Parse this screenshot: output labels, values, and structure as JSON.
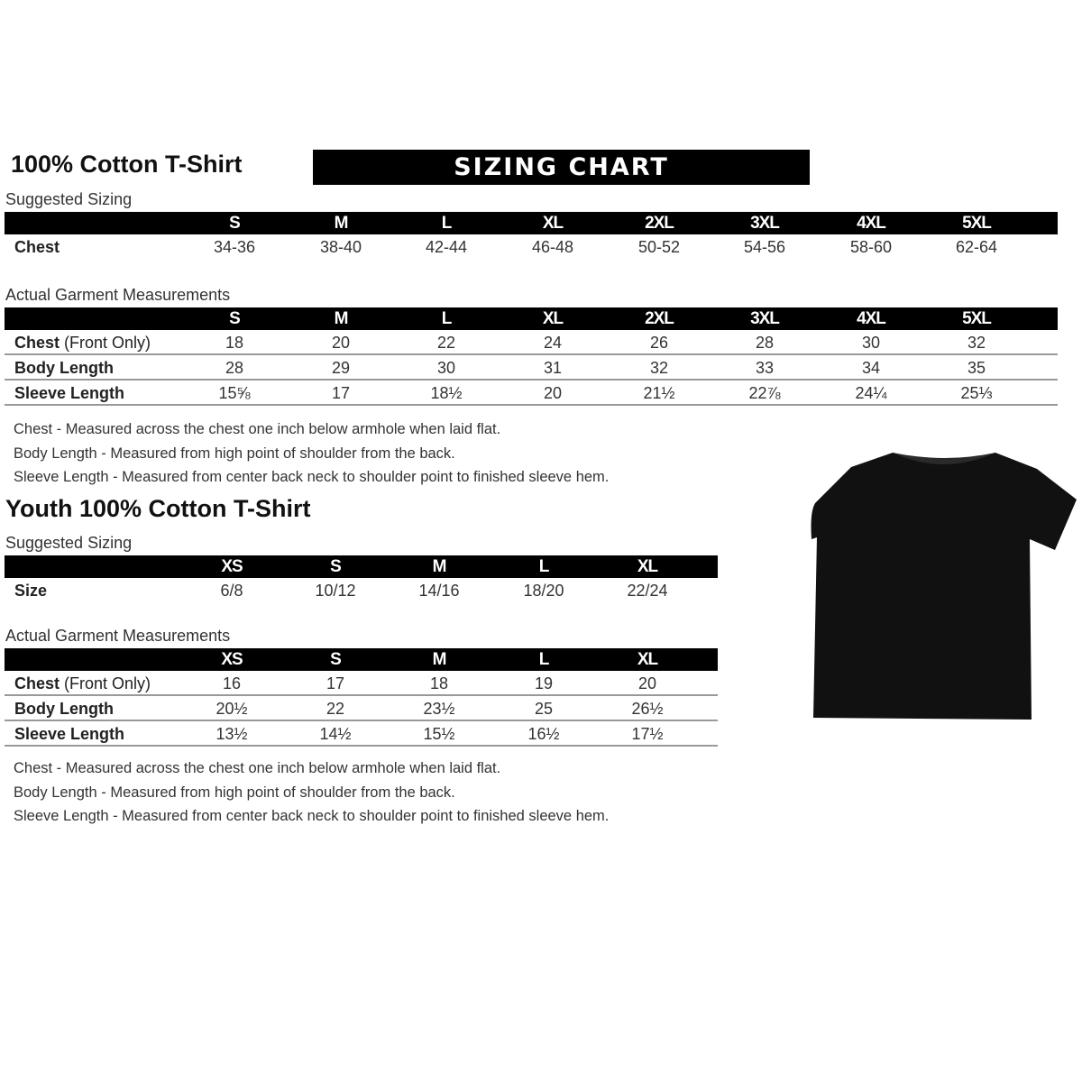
{
  "adult": {
    "title": "100% Cotton T-Shirt",
    "banner": "SIZING CHART",
    "suggested_label": "Suggested Sizing",
    "sizes": [
      "S",
      "M",
      "L",
      "XL",
      "2XL",
      "3XL",
      "4XL",
      "5XL"
    ],
    "suggested_rows": [
      {
        "label": "Chest",
        "values": [
          "34-36",
          "38-40",
          "42-44",
          "46-48",
          "50-52",
          "54-56",
          "58-60",
          "62-64"
        ]
      }
    ],
    "actual_label": "Actual Garment Measurements",
    "actual_rows": [
      {
        "label": "Chest",
        "label_extra": " (Front Only)",
        "values": [
          "18",
          "20",
          "22",
          "24",
          "26",
          "28",
          "30",
          "32"
        ]
      },
      {
        "label": "Body Length",
        "values": [
          "28",
          "29",
          "30",
          "31",
          "32",
          "33",
          "34",
          "35"
        ]
      },
      {
        "label": "Sleeve Length",
        "values": [
          "15⅝",
          "17",
          "18½",
          "20",
          "21½",
          "22⅞",
          "24¼",
          "25⅓"
        ]
      }
    ],
    "notes": [
      "Chest - Measured across the chest one inch below armhole when laid flat.",
      "Body Length - Measured from high point of shoulder from the back.",
      "Sleeve Length - Measured from center back neck to shoulder point to finished sleeve hem."
    ]
  },
  "youth": {
    "title": "Youth 100% Cotton T-Shirt",
    "suggested_label": "Suggested Sizing",
    "sizes": [
      "XS",
      "S",
      "M",
      "L",
      "XL"
    ],
    "suggested_rows": [
      {
        "label": "Size",
        "values": [
          "6/8",
          "10/12",
          "14/16",
          "18/20",
          "22/24"
        ]
      }
    ],
    "actual_label": "Actual Garment Measurements",
    "actual_rows": [
      {
        "label": "Chest",
        "label_extra": " (Front Only)",
        "values": [
          "16",
          "17",
          "18",
          "19",
          "20"
        ]
      },
      {
        "label": "Body Length",
        "values": [
          "20½",
          "22",
          "23½",
          "25",
          "26½"
        ]
      },
      {
        "label": "Sleeve Length",
        "values": [
          "13½",
          "14½",
          "15½",
          "16½",
          "17½"
        ]
      }
    ],
    "notes": [
      "Chest - Measured across the chest one inch below armhole when laid flat.",
      "Body Length - Measured from high point of shoulder from the back.",
      "Sleeve Length - Measured from center back neck to shoulder point to finished sleeve hem."
    ]
  },
  "product_image": {
    "icon": "black-tshirt",
    "color": "#111111"
  }
}
